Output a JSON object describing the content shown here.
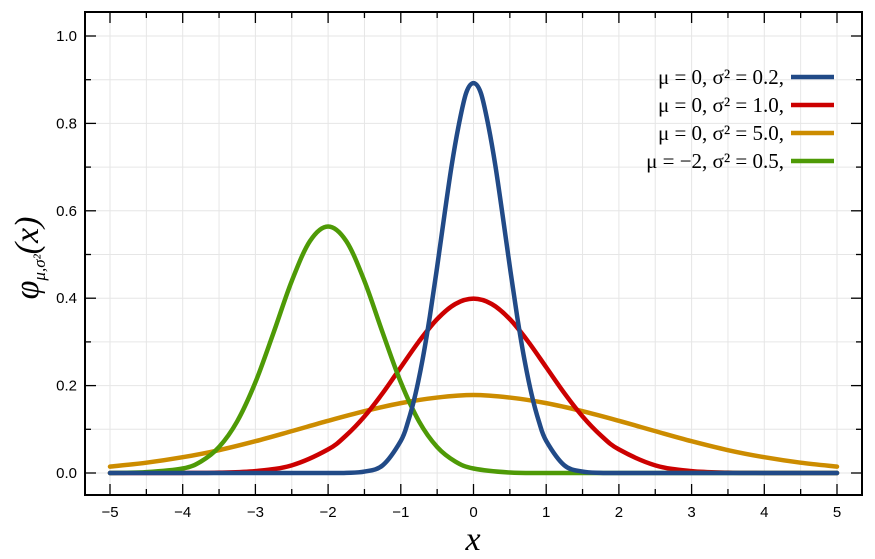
{
  "chart_data": {
    "type": "line",
    "xlabel": "x",
    "ylabel": "φμ,σ²(x)",
    "xlim": [
      -5,
      5
    ],
    "ylim": [
      0,
      1.05
    ],
    "x_ticks": [
      -5,
      -4,
      -3,
      -2,
      -1,
      0,
      1,
      2,
      3,
      4,
      5
    ],
    "x_tick_labels": [
      "−5",
      "−4",
      "−3",
      "−2",
      "−1",
      "0",
      "1",
      "2",
      "3",
      "4",
      "5"
    ],
    "y_ticks": [
      0.0,
      0.2,
      0.4,
      0.6,
      0.8,
      1.0
    ],
    "y_tick_labels": [
      "0.0",
      "0.2",
      "0.4",
      "0.6",
      "0.8",
      "1.0"
    ],
    "grid": true,
    "legend_position": "top-right",
    "series": [
      {
        "name": "μ = 0,   σ² = 0.2,",
        "color": "#214a87",
        "mu": 0,
        "variance": 0.2,
        "x": [
          -5,
          -4.5,
          -4,
          -3.5,
          -3,
          -2.5,
          -2,
          -1.75,
          -1.5,
          -1.25,
          -1,
          -0.9,
          -0.8,
          -0.7,
          -0.6,
          -0.5,
          -0.4,
          -0.3,
          -0.2,
          -0.1,
          0,
          0.1,
          0.2,
          0.3,
          0.4,
          0.5,
          0.6,
          0.7,
          0.8,
          0.9,
          1,
          1.25,
          1.5,
          1.75,
          2,
          2.5,
          3,
          3.5,
          4,
          4.5,
          5
        ],
        "y": [
          0,
          0,
          0,
          0,
          0,
          0,
          0,
          0.0004,
          0.0032,
          0.0175,
          0.0736,
          0.1177,
          0.1793,
          0.26,
          0.3589,
          0.4717,
          0.5903,
          0.7041,
          0.7985,
          0.8701,
          0.8921,
          0.8701,
          0.7985,
          0.7041,
          0.5903,
          0.4717,
          0.3589,
          0.26,
          0.1793,
          0.1177,
          0.0736,
          0.0175,
          0.0032,
          0.0004,
          0,
          0,
          0,
          0,
          0,
          0,
          0
        ]
      },
      {
        "name": "μ = 0,   σ² = 1.0,",
        "color": "#cc0000",
        "mu": 0,
        "variance": 1.0,
        "x": [
          -5,
          -4.5,
          -4,
          -3.5,
          -3,
          -2.5,
          -2,
          -1.75,
          -1.5,
          -1.25,
          -1,
          -0.75,
          -0.5,
          -0.25,
          0,
          0.25,
          0.5,
          0.75,
          1,
          1.25,
          1.5,
          1.75,
          2,
          2.5,
          3,
          3.5,
          4,
          4.5,
          5
        ],
        "y": [
          0,
          0,
          0.0001,
          0.0009,
          0.0044,
          0.0175,
          0.054,
          0.0863,
          0.1295,
          0.1826,
          0.242,
          0.3011,
          0.3521,
          0.3867,
          0.3989,
          0.3867,
          0.3521,
          0.3011,
          0.242,
          0.1826,
          0.1295,
          0.0863,
          0.054,
          0.0175,
          0.0044,
          0.0009,
          0.0001,
          0,
          0
        ]
      },
      {
        "name": "μ = 0,   σ² = 5.0,",
        "color": "#cc8c00",
        "mu": 0,
        "variance": 5.0,
        "x": [
          -5,
          -4.5,
          -4,
          -3.5,
          -3,
          -2.5,
          -2,
          -1.5,
          -1,
          -0.5,
          0,
          0.5,
          1,
          1.5,
          2,
          2.5,
          3,
          3.5,
          4,
          4.5,
          5
        ],
        "y": [
          0.0146,
          0.0236,
          0.0361,
          0.0523,
          0.0727,
          0.0958,
          0.1194,
          0.1414,
          0.1599,
          0.1726,
          0.1784,
          0.1726,
          0.1599,
          0.1414,
          0.1194,
          0.0958,
          0.0727,
          0.0523,
          0.0361,
          0.0236,
          0.0146
        ]
      },
      {
        "name": "μ = −2, σ² = 0.5,",
        "color": "#4e9a06",
        "mu": -2,
        "variance": 0.5,
        "x": [
          -5,
          -4.5,
          -4,
          -3.75,
          -3.5,
          -3.25,
          -3,
          -2.75,
          -2.5,
          -2.25,
          -2,
          -1.75,
          -1.5,
          -1.25,
          -1,
          -0.75,
          -0.5,
          -0.25,
          0,
          0.5,
          1,
          1.5,
          2,
          2.5,
          3,
          3.5,
          4,
          4.5,
          5
        ],
        "y": [
          0,
          0.0019,
          0.0103,
          0.0263,
          0.0595,
          0.1183,
          0.2076,
          0.3213,
          0.4393,
          0.5307,
          0.5642,
          0.5307,
          0.4393,
          0.3213,
          0.2076,
          0.1183,
          0.0595,
          0.0263,
          0.0103,
          0.0011,
          0,
          0,
          0,
          0,
          0,
          0,
          0,
          0,
          0
        ]
      }
    ]
  }
}
